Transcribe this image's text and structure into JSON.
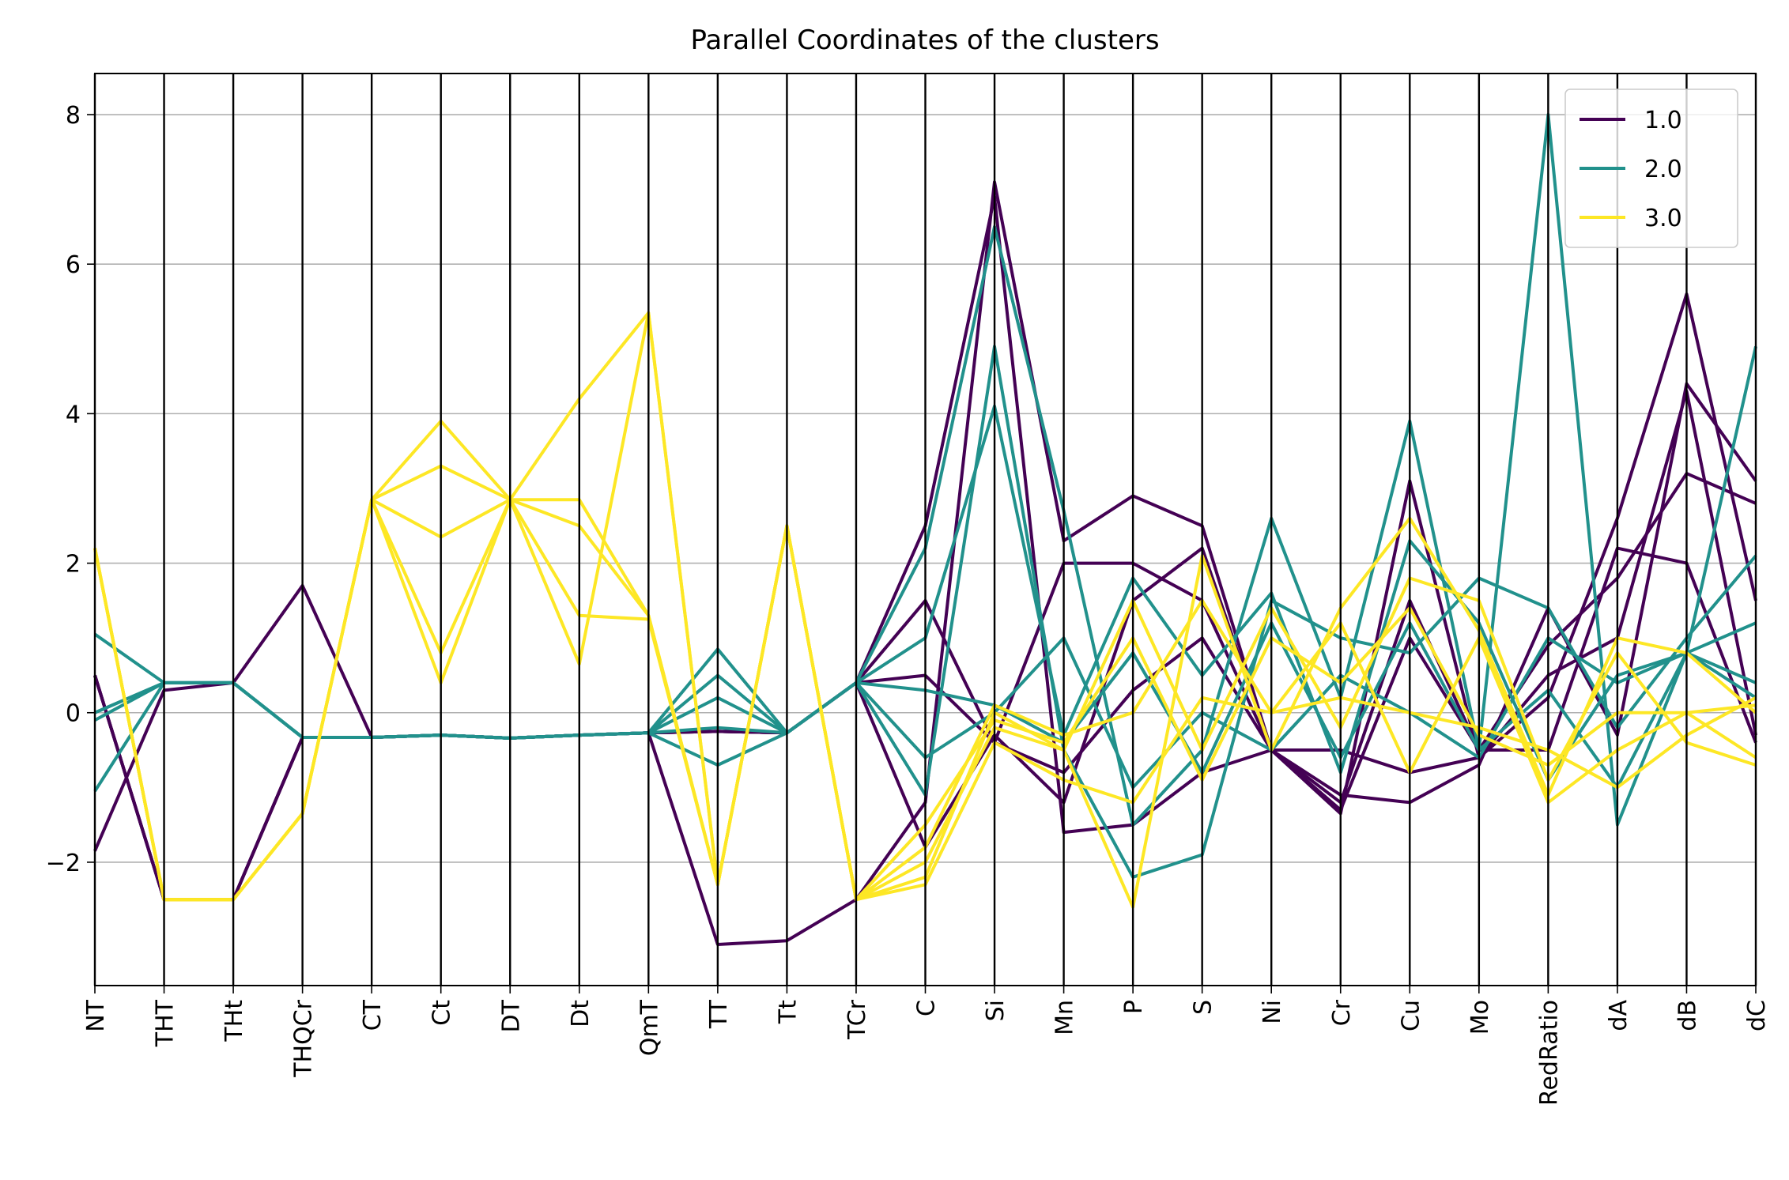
{
  "chart_data": {
    "type": "line",
    "subtype": "parallel_coordinates",
    "title": "Parallel Coordinates of the clusters",
    "xlabel": "",
    "ylabel": "",
    "axes": [
      "NT",
      "THT",
      "THt",
      "THQCr",
      "CT",
      "Ct",
      "DT",
      "Dt",
      "QmT",
      "TT",
      "Tt",
      "TCr",
      "C",
      "Si",
      "Mn",
      "P",
      "S",
      "Ni",
      "Cr",
      "Cu",
      "Mo",
      "RedRatio",
      "dA",
      "dB",
      "dC"
    ],
    "ylim": [
      -3.65,
      8.55
    ],
    "yticks": [
      -2,
      0,
      2,
      4,
      6,
      8
    ],
    "ytick_labels": [
      "−2",
      "0",
      "2",
      "4",
      "6",
      "8"
    ],
    "grid": "horizontal",
    "legend_position": "top-right",
    "colors": {
      "1.0": "#440154",
      "2.0": "#21918c",
      "3.0": "#fde725"
    },
    "series": [
      {
        "name": "1.0",
        "color": "#440154",
        "lines": [
          [
            -1.85,
            0.3,
            0.4,
            1.7,
            -0.33,
            -0.3,
            -0.34,
            -0.3,
            -0.27,
            -3.1,
            -3.05,
            -2.5,
            -1.2,
            7.1,
            2.3,
            2.9,
            2.5,
            -0.5,
            -1.35,
            3.1,
            -0.6,
            0.2,
            2.6,
            5.6,
            1.5
          ],
          [
            0.5,
            -2.5,
            -2.5,
            -0.33,
            -0.33,
            -0.3,
            -0.34,
            -0.3,
            -0.27,
            -0.25,
            -0.27,
            0.4,
            2.5,
            6.9,
            -1.6,
            -1.5,
            -0.8,
            -0.5,
            -1.1,
            -1.2,
            -0.7,
            1.4,
            -0.3,
            4.4,
            3.1
          ],
          [
            0.5,
            -2.5,
            -2.5,
            -0.33,
            -0.33,
            -0.3,
            -0.34,
            -0.3,
            -0.27,
            -0.25,
            -0.27,
            0.4,
            1.5,
            -0.4,
            2.0,
            2.0,
            1.5,
            -0.5,
            -1.3,
            1.0,
            -0.5,
            0.9,
            1.8,
            3.2,
            2.8
          ],
          [
            0.5,
            -2.5,
            -2.5,
            -0.33,
            -0.33,
            -0.3,
            -0.34,
            -0.3,
            -0.27,
            -0.25,
            -0.27,
            0.4,
            -1.8,
            -0.3,
            -1.2,
            1.5,
            2.2,
            -0.5,
            -1.2,
            1.5,
            -0.5,
            -0.5,
            2.2,
            2.0,
            -0.4
          ],
          [
            0.5,
            -2.5,
            -2.5,
            -0.33,
            -0.33,
            -0.3,
            -0.34,
            -0.3,
            -0.27,
            -0.25,
            -0.27,
            0.4,
            0.5,
            -0.4,
            -0.8,
            0.3,
            1.0,
            -0.5,
            -0.5,
            -0.8,
            -0.6,
            0.5,
            1.0,
            4.3,
            -0.3
          ]
        ]
      },
      {
        "name": "2.0",
        "color": "#21918c",
        "lines": [
          [
            1.05,
            0.4,
            0.4,
            -0.33,
            -0.33,
            -0.3,
            -0.34,
            -0.3,
            -0.27,
            0.85,
            -0.27,
            0.4,
            2.2,
            6.5,
            2.7,
            -1.5,
            -0.5,
            2.6,
            0.2,
            3.9,
            -0.5,
            8.0,
            -1.5,
            0.8,
            4.9
          ],
          [
            -1.05,
            0.4,
            0.4,
            -0.33,
            -0.33,
            -0.3,
            -0.34,
            -0.3,
            -0.27,
            -0.7,
            -0.27,
            0.4,
            -1.1,
            4.9,
            -0.5,
            -2.2,
            -1.9,
            1.5,
            1.0,
            0.8,
            1.8,
            1.4,
            -0.2,
            1.0,
            2.1
          ],
          [
            -0.1,
            0.4,
            0.4,
            -0.33,
            -0.33,
            -0.3,
            -0.34,
            -0.3,
            -0.27,
            0.5,
            -0.27,
            0.4,
            1.0,
            4.1,
            -0.3,
            1.8,
            0.5,
            1.6,
            -0.8,
            2.3,
            1.2,
            -0.9,
            0.5,
            0.8,
            1.2
          ],
          [
            0.0,
            0.4,
            0.4,
            -0.33,
            -0.33,
            -0.3,
            -0.34,
            -0.3,
            -0.27,
            0.2,
            -0.27,
            0.4,
            -0.6,
            0.0,
            1.0,
            -1.0,
            0.0,
            -0.5,
            0.5,
            0.0,
            -0.6,
            1.0,
            0.4,
            0.8,
            0.2
          ],
          [
            0.0,
            0.4,
            0.4,
            -0.33,
            -0.33,
            -0.3,
            -0.34,
            -0.3,
            -0.27,
            -0.2,
            -0.27,
            0.4,
            0.3,
            0.1,
            -0.4,
            0.8,
            -0.8,
            1.2,
            -0.6,
            1.2,
            -0.5,
            0.3,
            -1.0,
            0.8,
            0.4
          ]
        ]
      },
      {
        "name": "3.0",
        "color": "#fde725",
        "lines": [
          [
            2.2,
            -2.5,
            -2.5,
            -1.35,
            2.85,
            3.9,
            2.85,
            4.2,
            5.35,
            -2.3,
            2.5,
            -2.5,
            -2.2,
            0.0,
            -0.5,
            -2.6,
            2.1,
            -0.5,
            1.4,
            2.6,
            1.1,
            -1.1,
            1.0,
            0.8,
            0.0
          ],
          [
            2.2,
            -2.5,
            -2.5,
            -1.35,
            2.85,
            0.4,
            2.85,
            0.65,
            5.35,
            -2.3,
            2.5,
            -2.5,
            -2.0,
            -0.2,
            -0.5,
            1.5,
            -0.5,
            1.4,
            -0.2,
            1.8,
            1.5,
            -0.9,
            0.8,
            -0.4,
            -0.7
          ],
          [
            2.2,
            -2.5,
            -2.5,
            -1.35,
            2.85,
            2.35,
            2.85,
            2.85,
            1.3,
            -2.3,
            2.5,
            -2.5,
            -1.8,
            0.1,
            -0.3,
            0.0,
            1.5,
            0.0,
            0.2,
            0.0,
            -0.2,
            -0.5,
            -1.0,
            -0.3,
            0.2
          ],
          [
            2.2,
            -2.5,
            -2.5,
            -1.35,
            2.85,
            3.3,
            2.85,
            1.3,
            1.25,
            -2.3,
            2.5,
            -2.5,
            -2.3,
            -0.4,
            -0.9,
            -1.2,
            0.2,
            0.0,
            1.2,
            -0.8,
            1.0,
            -1.2,
            -0.5,
            0.0,
            -0.6
          ],
          [
            2.2,
            -2.5,
            -2.5,
            -1.35,
            2.85,
            0.8,
            2.85,
            2.5,
            1.3,
            -2.3,
            2.5,
            -2.5,
            -1.5,
            -0.1,
            -0.4,
            1.0,
            -0.9,
            1.0,
            0.4,
            1.4,
            -0.3,
            -0.7,
            0.0,
            0.0,
            0.1
          ]
        ]
      }
    ]
  }
}
